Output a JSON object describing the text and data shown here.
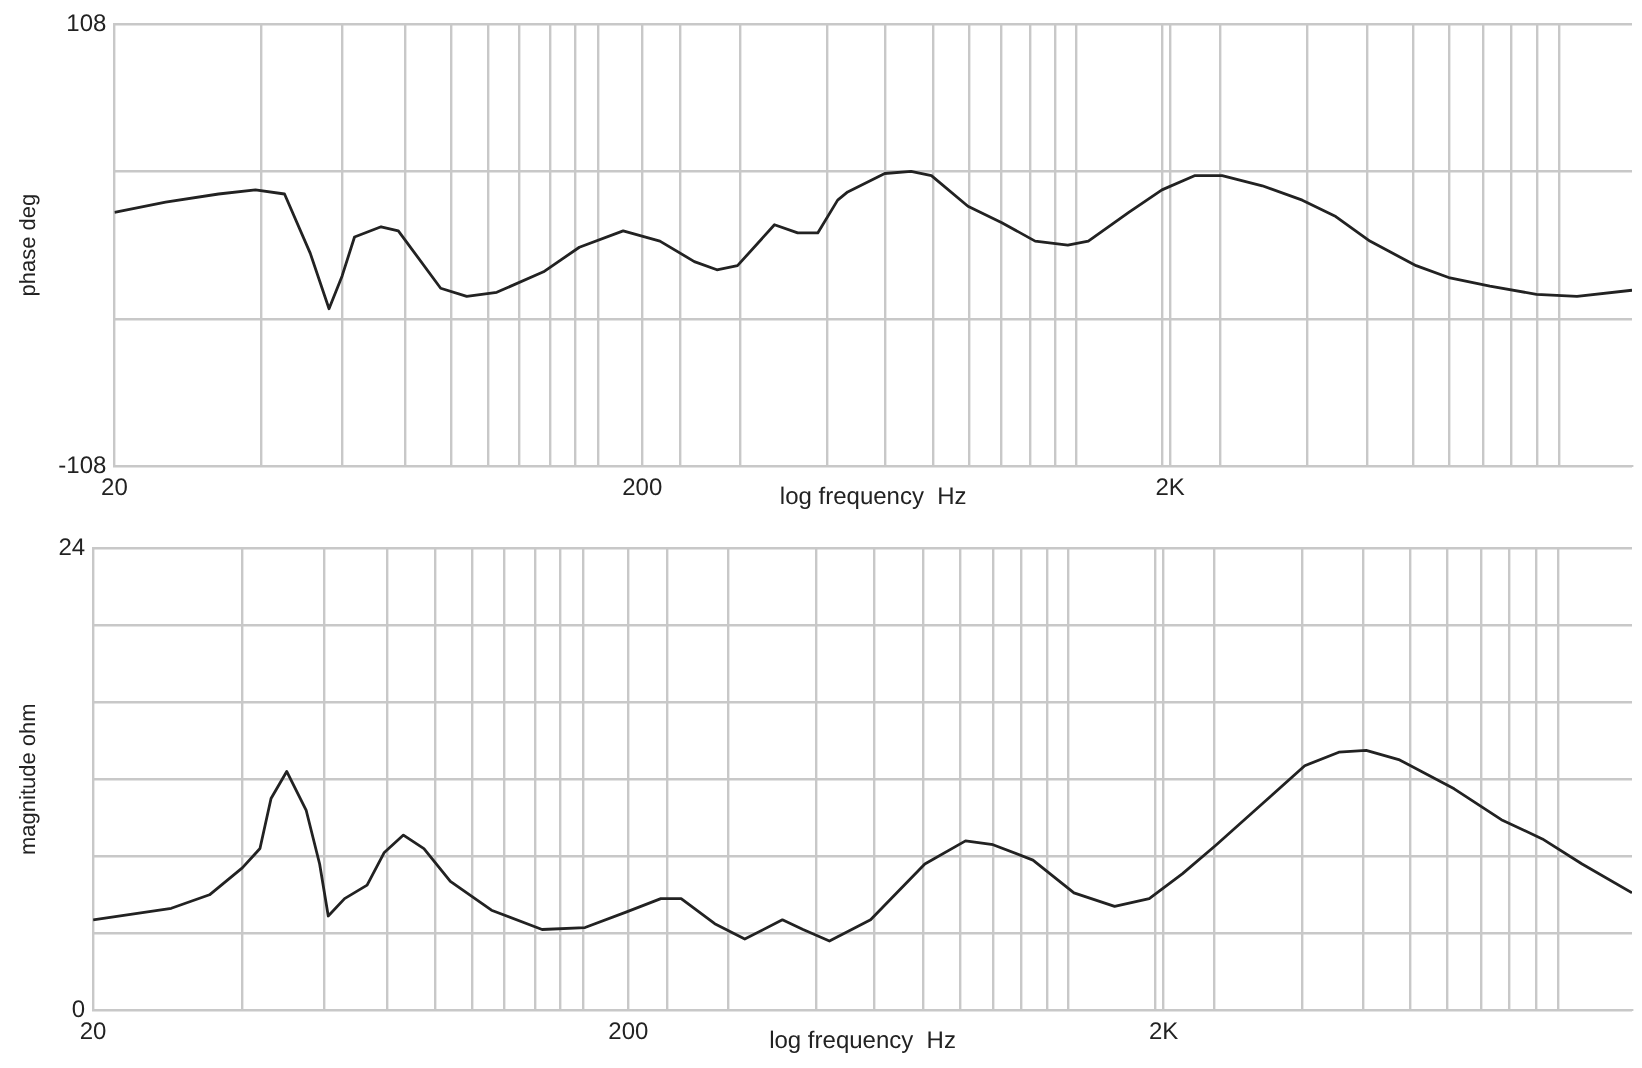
{
  "chart_data": [
    {
      "type": "line",
      "ylabel": "phase deg",
      "xlabel": "log frequency  Hz",
      "log": "x",
      "grid": true,
      "marker": "none",
      "line_style": "solid",
      "color": "#222222",
      "xlim": [
        20,
        15000
      ],
      "xticks": [
        {
          "value": 20,
          "label": "20"
        },
        {
          "value": 38,
          "label": null
        },
        {
          "value": 54,
          "label": null
        },
        {
          "value": 71,
          "label": null
        },
        {
          "value": 87,
          "label": null
        },
        {
          "value": 102,
          "label": null
        },
        {
          "value": 117,
          "label": null
        },
        {
          "value": 134,
          "label": null
        },
        {
          "value": 149,
          "label": null
        },
        {
          "value": 165,
          "label": null
        },
        {
          "value": 200,
          "label": "200"
        },
        {
          "value": 236,
          "label": null
        },
        {
          "value": 307,
          "label": null
        },
        {
          "value": 448,
          "label": null
        },
        {
          "value": 577,
          "label": null
        },
        {
          "value": 711,
          "label": null
        },
        {
          "value": 834,
          "label": null
        },
        {
          "value": 959,
          "label": null
        },
        {
          "value": 1084,
          "label": null
        },
        {
          "value": 1214,
          "label": null
        },
        {
          "value": 1325,
          "label": null
        },
        {
          "value": 1932,
          "label": null
        },
        {
          "value": 2000,
          "label": "2K"
        },
        {
          "value": 2490,
          "label": null
        },
        {
          "value": 3630,
          "label": null
        },
        {
          "value": 4720,
          "label": null
        },
        {
          "value": 5770,
          "label": null
        },
        {
          "value": 6760,
          "label": null
        },
        {
          "value": 7840,
          "label": null
        },
        {
          "value": 8850,
          "label": null
        },
        {
          "value": 9930,
          "label": null
        },
        {
          "value": 10900,
          "label": null
        }
      ],
      "ylim": [
        -108,
        108
      ],
      "yticks": [
        -108,
        {
          "value": -36,
          "label": null
        },
        {
          "value": 36,
          "label": null
        },
        108
      ],
      "x": [
        20,
        25,
        31.5,
        37,
        42,
        47,
        51,
        54,
        57,
        64,
        69,
        83,
        93,
        106,
        130,
        152,
        184,
        216,
        251,
        277,
        303,
        356,
        394,
        430,
        469,
        490,
        576,
        646,
        706,
        828,
        960,
        1110,
        1280,
        1400,
        1670,
        1930,
        2230,
        2510,
        2990,
        3560,
        4120,
        4780,
        5850,
        6780,
        8070,
        9890,
        11800,
        15000
      ],
      "values": [
        16,
        21,
        25,
        27,
        25,
        -4,
        -31,
        -15,
        4,
        9,
        7,
        -21,
        -25,
        -23,
        -13,
        -1,
        7,
        2,
        -8,
        -12,
        -10,
        10,
        6,
        6,
        22,
        26,
        35,
        36,
        34,
        19,
        11,
        2,
        0,
        2,
        16,
        27,
        34,
        34,
        29,
        22,
        14,
        2,
        -10,
        -16,
        -20,
        -24,
        -25,
        -22
      ]
    },
    {
      "type": "line",
      "ylabel": "magnitude ohm",
      "xlabel": "log frequency  Hz",
      "log": "x",
      "grid": true,
      "marker": "none",
      "line_style": "solid",
      "color": "#222222",
      "xlim": [
        20,
        15000
      ],
      "xticks": [
        {
          "value": 20,
          "label": "20"
        },
        {
          "value": 38,
          "label": null
        },
        {
          "value": 54,
          "label": null
        },
        {
          "value": 71,
          "label": null
        },
        {
          "value": 87,
          "label": null
        },
        {
          "value": 102,
          "label": null
        },
        {
          "value": 117,
          "label": null
        },
        {
          "value": 134,
          "label": null
        },
        {
          "value": 149,
          "label": null
        },
        {
          "value": 165,
          "label": null
        },
        {
          "value": 200,
          "label": "200"
        },
        {
          "value": 236,
          "label": null
        },
        {
          "value": 307,
          "label": null
        },
        {
          "value": 448,
          "label": null
        },
        {
          "value": 577,
          "label": null
        },
        {
          "value": 711,
          "label": null
        },
        {
          "value": 834,
          "label": null
        },
        {
          "value": 959,
          "label": null
        },
        {
          "value": 1084,
          "label": null
        },
        {
          "value": 1214,
          "label": null
        },
        {
          "value": 1325,
          "label": null
        },
        {
          "value": 1932,
          "label": null
        },
        {
          "value": 2000,
          "label": "2K"
        },
        {
          "value": 2490,
          "label": null
        },
        {
          "value": 3630,
          "label": null
        },
        {
          "value": 4720,
          "label": null
        },
        {
          "value": 5770,
          "label": null
        },
        {
          "value": 6760,
          "label": null
        },
        {
          "value": 7840,
          "label": null
        },
        {
          "value": 8850,
          "label": null
        },
        {
          "value": 9930,
          "label": null
        },
        {
          "value": 10900,
          "label": null
        }
      ],
      "ylim": [
        0,
        24
      ],
      "yticks": [
        0,
        {
          "value": 4,
          "label": null
        },
        {
          "value": 8,
          "label": null
        },
        {
          "value": 12,
          "label": null
        },
        {
          "value": 16,
          "label": null
        },
        {
          "value": 20,
          "label": null
        },
        24
      ],
      "x": [
        20,
        28,
        33,
        38,
        41,
        43,
        46,
        50,
        53,
        55,
        59,
        65,
        70,
        76,
        83,
        93,
        111,
        138,
        166,
        198,
        230,
        251,
        290,
        330,
        388,
        424,
        475,
        567,
        716,
        853,
        960,
        1140,
        1360,
        1620,
        1880,
        2170,
        2510,
        3080,
        3670,
        4250,
        4780,
        5520,
        6980,
        8550,
        10200,
        12100,
        15000
      ],
      "values": [
        4.7,
        5.3,
        6.0,
        7.4,
        8.4,
        11.0,
        12.4,
        10.4,
        7.6,
        4.9,
        5.8,
        6.5,
        8.2,
        9.1,
        8.4,
        6.7,
        5.2,
        4.2,
        4.3,
        5.1,
        5.8,
        5.8,
        4.5,
        3.7,
        4.7,
        4.2,
        3.6,
        4.7,
        7.6,
        8.8,
        8.6,
        7.8,
        6.1,
        5.4,
        5.8,
        7.1,
        8.6,
        10.8,
        12.7,
        13.4,
        13.5,
        13.0,
        11.5,
        9.9,
        8.9,
        7.6,
        6.1
      ]
    }
  ]
}
